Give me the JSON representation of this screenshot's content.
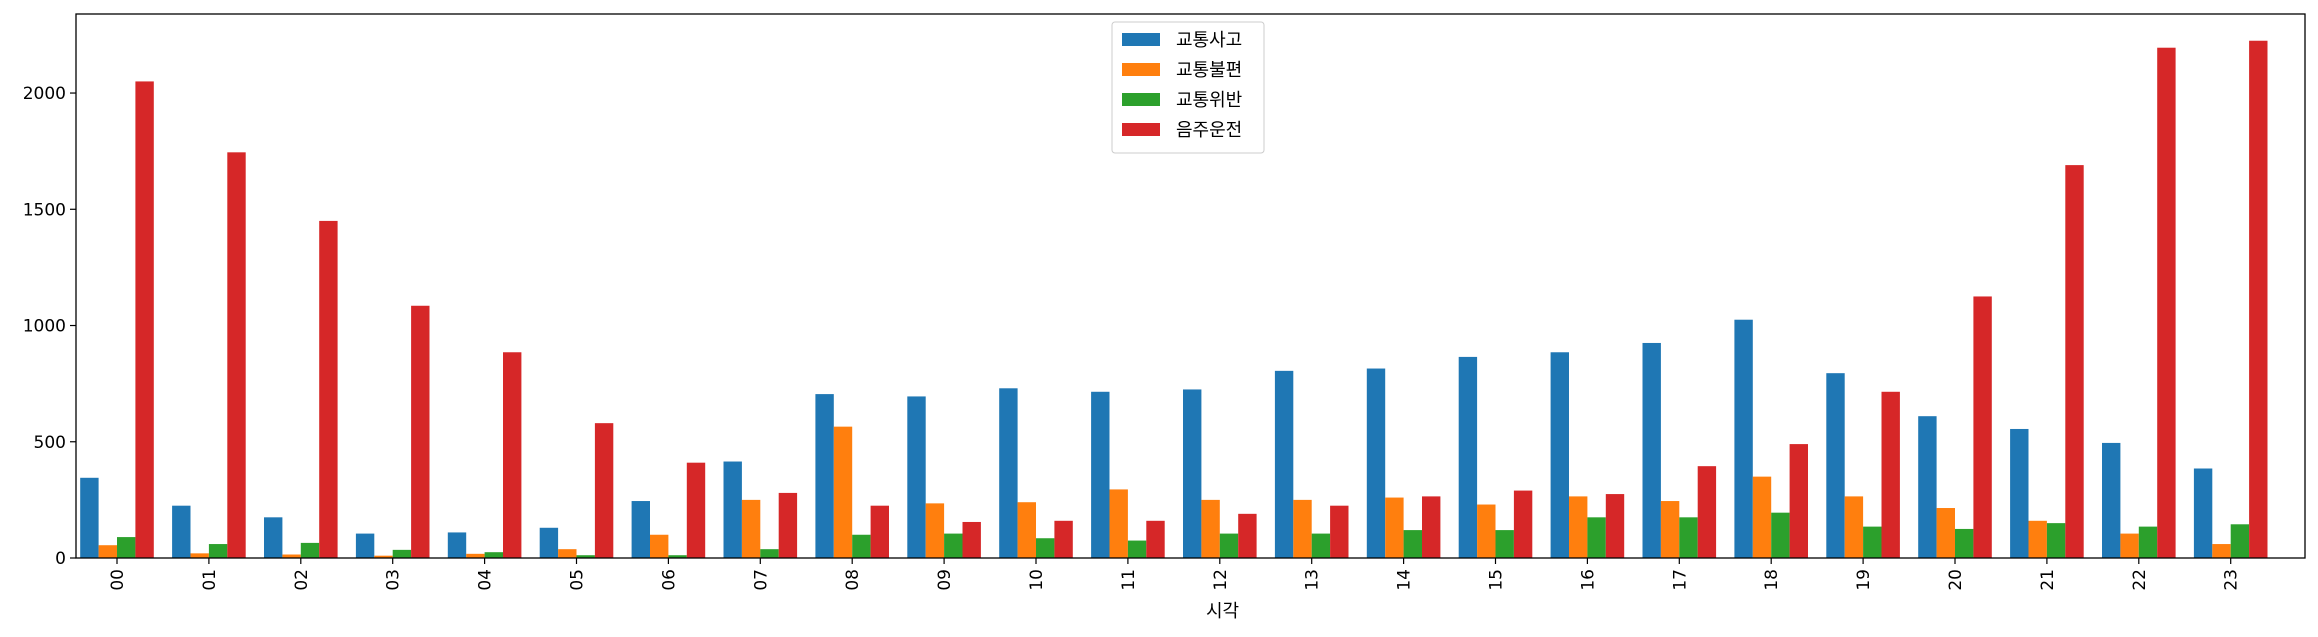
{
  "chart_data": {
    "type": "bar",
    "title": "",
    "xlabel": "시각",
    "ylabel": "",
    "ylim": [
      0,
      2340
    ],
    "yticks": [
      0,
      500,
      1000,
      1500,
      2000
    ],
    "categories": [
      "00",
      "01",
      "02",
      "03",
      "04",
      "05",
      "06",
      "07",
      "08",
      "09",
      "10",
      "11",
      "12",
      "13",
      "14",
      "15",
      "16",
      "17",
      "18",
      "19",
      "20",
      "21",
      "22",
      "23"
    ],
    "legend_position": "top-center",
    "series": [
      {
        "name": "교통사고",
        "color": "#1f77b4",
        "values": [
          345,
          225,
          175,
          105,
          110,
          130,
          245,
          415,
          705,
          695,
          730,
          715,
          725,
          805,
          815,
          865,
          885,
          925,
          1025,
          795,
          610,
          555,
          495,
          385
        ]
      },
      {
        "name": "교통불편",
        "color": "#ff7f0e",
        "values": [
          55,
          20,
          15,
          10,
          18,
          38,
          100,
          250,
          565,
          235,
          240,
          295,
          250,
          250,
          260,
          230,
          265,
          245,
          350,
          265,
          215,
          160,
          105,
          60
        ]
      },
      {
        "name": "교통위반",
        "color": "#2ca02c",
        "values": [
          90,
          60,
          65,
          35,
          25,
          12,
          12,
          38,
          100,
          105,
          85,
          75,
          105,
          105,
          120,
          120,
          175,
          175,
          195,
          135,
          125,
          150,
          135,
          145
        ]
      },
      {
        "name": "음주운전",
        "color": "#d62728",
        "values": [
          2050,
          1745,
          1450,
          1085,
          885,
          580,
          410,
          280,
          225,
          155,
          160,
          160,
          190,
          225,
          265,
          290,
          275,
          395,
          490,
          715,
          1125,
          1690,
          2195,
          2225
        ]
      }
    ]
  }
}
